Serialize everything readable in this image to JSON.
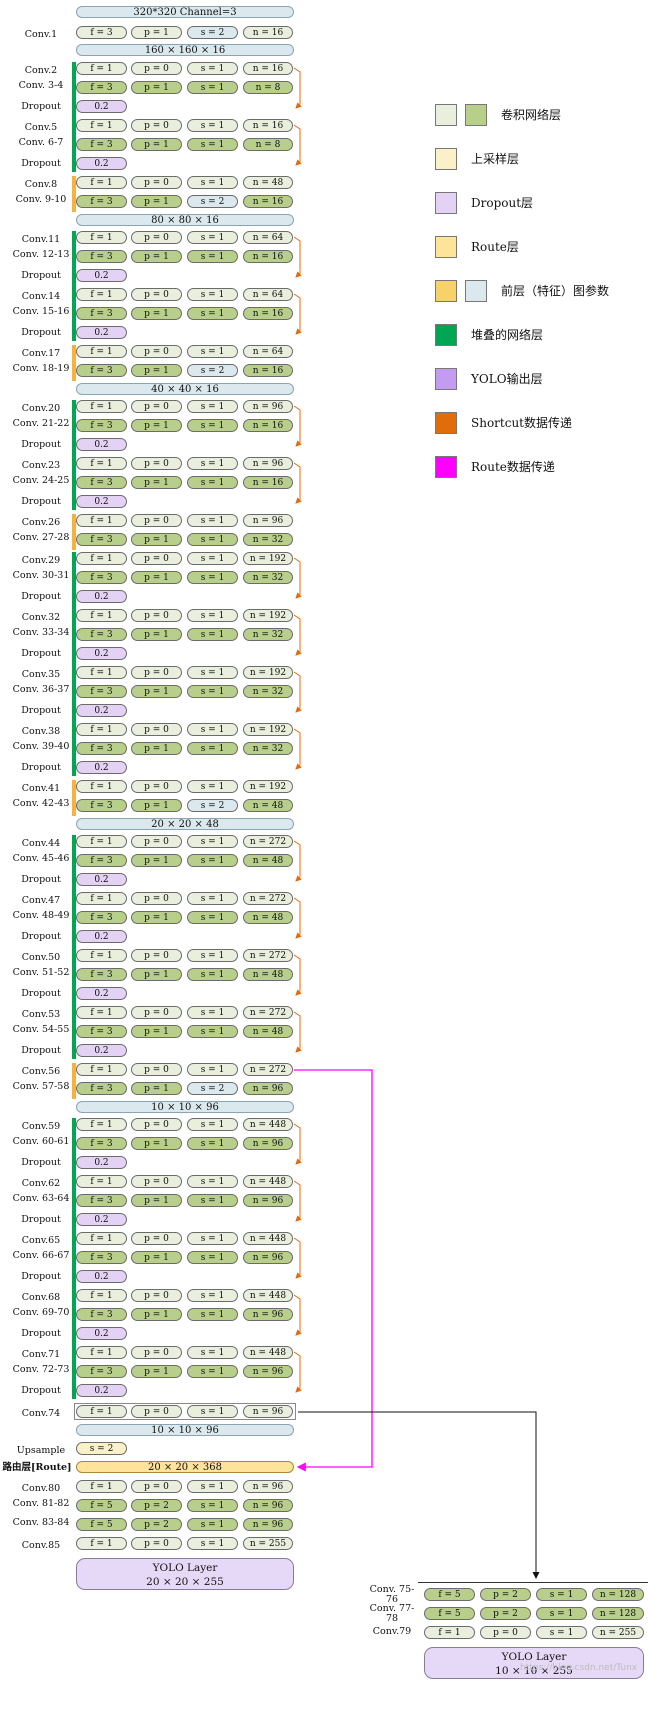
{
  "input_bar": "320*320 Channel=3",
  "conv1": {
    "label": "Conv.1",
    "f": "f = 3",
    "p": "p = 1",
    "s": "s = 2",
    "n": "n = 16"
  },
  "bars": [
    "160 × 160 × 16",
    "80 × 80 × 16",
    "40 × 40 × 16",
    "20 × 20 × 48",
    "10 × 10 × 96",
    "10 × 10 × 96"
  ],
  "dropout_value": "0.2",
  "dropout_label": "Dropout",
  "blocks": [
    {
      "type": "res",
      "a": "Conv.2",
      "b": "Conv. 3-4",
      "n1": "n = 16",
      "n2": "n = 8"
    },
    {
      "type": "res",
      "a": "Conv.5",
      "b": "Conv. 6-7",
      "n1": "n = 16",
      "n2": "n = 8"
    },
    {
      "type": "down",
      "a": "Conv.8",
      "b": "Conv. 9-10",
      "n1": "n = 48",
      "n2": "n = 16"
    },
    {
      "type": "res",
      "a": "Conv.11",
      "b": "Conv. 12-13",
      "n1": "n = 64",
      "n2": "n = 16"
    },
    {
      "type": "res",
      "a": "Conv.14",
      "b": "Conv. 15-16",
      "n1": "n = 64",
      "n2": "n = 16"
    },
    {
      "type": "down",
      "a": "Conv.17",
      "b": "Conv. 18-19",
      "n1": "n = 64",
      "n2": "n = 16"
    },
    {
      "type": "res",
      "a": "Conv.20",
      "b": "Conv. 21-22",
      "n1": "n = 96",
      "n2": "n = 16"
    },
    {
      "type": "res",
      "a": "Conv.23",
      "b": "Conv. 24-25",
      "n1": "n = 96",
      "n2": "n = 16"
    },
    {
      "type": "plain",
      "a": "Conv.26",
      "b": "Conv. 27-28",
      "n1": "n = 96",
      "n2": "n = 32"
    },
    {
      "type": "res",
      "a": "Conv.29",
      "b": "Conv. 30-31",
      "n1": "n = 192",
      "n2": "n = 32"
    },
    {
      "type": "res",
      "a": "Conv.32",
      "b": "Conv. 33-34",
      "n1": "n = 192",
      "n2": "n = 32"
    },
    {
      "type": "res",
      "a": "Conv.35",
      "b": "Conv. 36-37",
      "n1": "n = 192",
      "n2": "n = 32"
    },
    {
      "type": "res",
      "a": "Conv.38",
      "b": "Conv. 39-40",
      "n1": "n = 192",
      "n2": "n = 32"
    },
    {
      "type": "down",
      "a": "Conv.41",
      "b": "Conv. 42-43",
      "n1": "n = 192",
      "n2": "n = 48"
    },
    {
      "type": "res",
      "a": "Conv.44",
      "b": "Conv. 45-46",
      "n1": "n = 272",
      "n2": "n = 48"
    },
    {
      "type": "res",
      "a": "Conv.47",
      "b": "Conv. 48-49",
      "n1": "n = 272",
      "n2": "n = 48"
    },
    {
      "type": "res",
      "a": "Conv.50",
      "b": "Conv. 51-52",
      "n1": "n = 272",
      "n2": "n = 48"
    },
    {
      "type": "res",
      "a": "Conv.53",
      "b": "Conv. 54-55",
      "n1": "n = 272",
      "n2": "n = 48"
    },
    {
      "type": "down",
      "a": "Conv.56",
      "b": "Conv. 57-58",
      "n1": "n = 272",
      "n2": "n = 96"
    },
    {
      "type": "res",
      "a": "Conv.59",
      "b": "Conv. 60-61",
      "n1": "n = 448",
      "n2": "n = 96"
    },
    {
      "type": "res",
      "a": "Conv.62",
      "b": "Conv. 63-64",
      "n1": "n = 448",
      "n2": "n = 96"
    },
    {
      "type": "res",
      "a": "Conv.65",
      "b": "Conv. 66-67",
      "n1": "n = 448",
      "n2": "n = 96"
    },
    {
      "type": "res",
      "a": "Conv.68",
      "b": "Conv. 69-70",
      "n1": "n = 448",
      "n2": "n = 96"
    },
    {
      "type": "res",
      "a": "Conv.71",
      "b": "Conv. 72-73",
      "n1": "n = 448",
      "n2": "n = 96"
    }
  ],
  "conv74": {
    "label": "Conv.74",
    "f": "f = 1",
    "p": "p = 0",
    "s": "s = 1",
    "n": "n = 96"
  },
  "upsample": {
    "label": "Upsample",
    "s": "s = 2"
  },
  "route": {
    "label": "路由层[Route]",
    "value": "20 × 20 × 368"
  },
  "head_left": [
    {
      "label": "Conv.80",
      "f": "f = 1",
      "p": "p = 0",
      "s": "s = 1",
      "n": "n = 96"
    },
    {
      "label": "Conv. 81-82",
      "f": "f = 5",
      "p": "p = 2",
      "s": "s = 1",
      "n": "n = 96"
    },
    {
      "label": "Conv. 83-84",
      "f": "f = 5",
      "p": "p = 2",
      "s": "s = 1",
      "n": "n = 96"
    },
    {
      "label": "Conv.85",
      "f": "f = 1",
      "p": "p = 0",
      "s": "s = 1",
      "n": "n = 255"
    }
  ],
  "yolo_left": {
    "title": "YOLO Layer",
    "dims": "20 × 20 × 255"
  },
  "head_right": [
    {
      "label": "Conv. 75-76",
      "f": "f = 5",
      "p": "p = 2",
      "s": "s = 1",
      "n": "n = 128"
    },
    {
      "label": "Conv. 77-78",
      "f": "f = 5",
      "p": "p = 2",
      "s": "s = 1",
      "n": "n = 128"
    },
    {
      "label": "Conv.79",
      "f": "f = 1",
      "p": "p = 0",
      "s": "s = 1",
      "n": "n = 255"
    }
  ],
  "yolo_right": {
    "title": "YOLO Layer",
    "dims": "10 × 10 × 255"
  },
  "watermark": "https://blog.csdn.net/Tunx",
  "legend": [
    {
      "text": "卷积网络层",
      "colors": [
        "#e9eedd",
        "#b8cf8c"
      ]
    },
    {
      "text": "上采样层",
      "colors": [
        "#fbf1c8"
      ]
    },
    {
      "text": "Dropout层",
      "colors": [
        "#e4d2f5"
      ]
    },
    {
      "text": "Route层",
      "colors": [
        "#fde49a"
      ]
    },
    {
      "text": "前层（特征）图参数",
      "colors": [
        "#f7d26a",
        "#dbe9ee"
      ]
    },
    {
      "text": "堆叠的网络层",
      "colors": [
        "#00a651"
      ]
    },
    {
      "text": "YOLO输出层",
      "colors": [
        "#c39bf0"
      ]
    },
    {
      "text": "Shortcut数据传递",
      "colors": [
        "#e36c0a"
      ]
    },
    {
      "text": "Route数据传递",
      "colors": [
        "#ff00ff"
      ]
    }
  ],
  "colors": {
    "stack_green": "#00a651",
    "prev_orange": "#f7b23b",
    "shortcut": "#e36c0a",
    "route": "#ff00ff"
  }
}
